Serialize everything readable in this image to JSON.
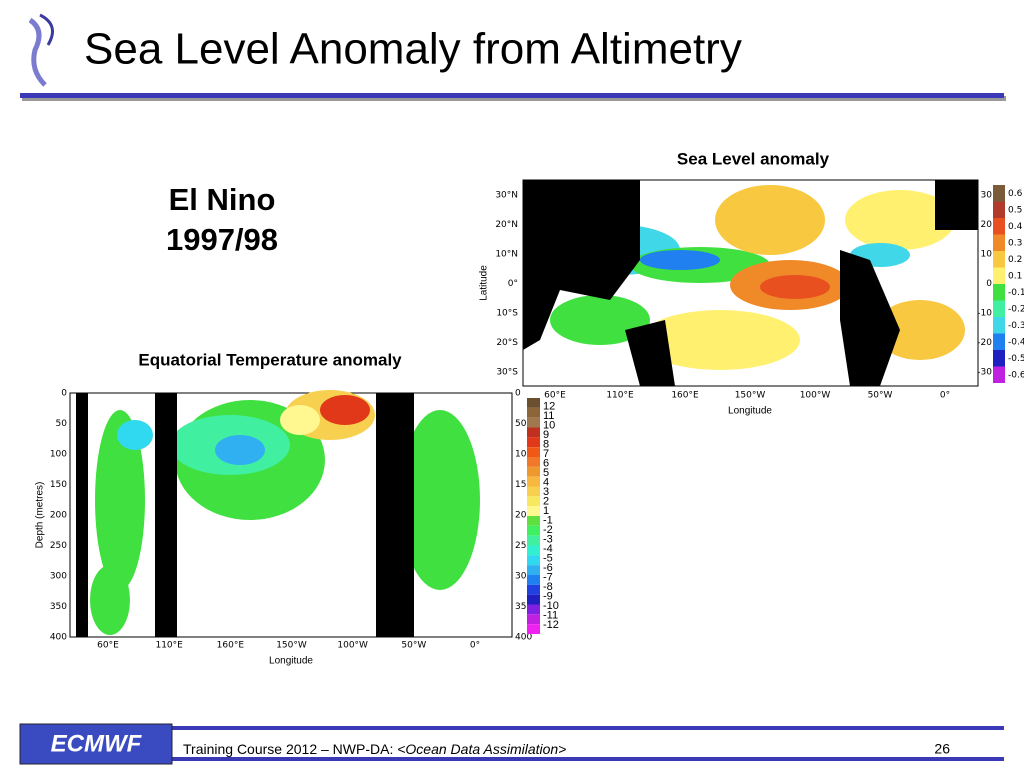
{
  "header": {
    "title": "Sea Level Anomaly from Altimetry"
  },
  "left_text": {
    "line1": "El Nino",
    "line2": "1997/98"
  },
  "sea_level": {
    "title": "Sea Level anomaly",
    "y_label": "Latitude",
    "x_label": "Longitude",
    "yticks": [
      "30°N",
      "20°N",
      "10°N",
      "0°",
      "10°S",
      "20°S",
      "30°S"
    ],
    "right_ticks": [
      "30",
      "20",
      "10",
      "0",
      "-10",
      "-20",
      "-30"
    ],
    "xticks": [
      "60°E",
      "110°E",
      "160°E",
      "150°W",
      "100°W",
      "50°W",
      "0°"
    ],
    "colorbar": {
      "labels": [
        "0.6",
        "0.5",
        "0.4",
        "0.3",
        "0.2",
        "0.1",
        "-0.1",
        "-0.2",
        "-0.3",
        "-0.4",
        "-0.5",
        "-0.6"
      ],
      "colors": [
        "#7a5c3a",
        "#b23a2a",
        "#e85020",
        "#f08a28",
        "#f8c840",
        "#fff070",
        "#40e040",
        "#40f0a0",
        "#40d8e8",
        "#2080f0",
        "#2020c0",
        "#c020e0"
      ]
    }
  },
  "temperature": {
    "title": "Equatorial Temperature anomaly",
    "y_label": "Depth (metres)",
    "x_label": "Longitude",
    "yticks": [
      "0",
      "50",
      "100",
      "150",
      "200",
      "250",
      "300",
      "350",
      "400"
    ],
    "xticks": [
      "60°E",
      "110°E",
      "160°E",
      "150°W",
      "100°W",
      "50°W",
      "0°"
    ],
    "colorbar": {
      "labels": [
        "12",
        "11",
        "10",
        "9",
        "8",
        "7",
        "6",
        "5",
        "4",
        "3",
        "2",
        "1",
        "-1",
        "-2",
        "-3",
        "-4",
        "-5",
        "-6",
        "-7",
        "-8",
        "-9",
        "-10",
        "-11",
        "-12"
      ],
      "colors": [
        "#6b5030",
        "#8c6638",
        "#a07850",
        "#c03020",
        "#e03818",
        "#f05818",
        "#f07828",
        "#f09830",
        "#f8b840",
        "#f8d050",
        "#f8e860",
        "#fff890",
        "#60e040",
        "#40f060",
        "#40f0a0",
        "#30f0d0",
        "#30d8f0",
        "#30b0f0",
        "#2080f0",
        "#2040e0",
        "#2020c0",
        "#8020e0",
        "#c020e0",
        "#f020f0"
      ]
    }
  },
  "footer": {
    "logo": "ECMWF",
    "course": "Training Course 2012 – NWP-DA: ",
    "topic": "<Ocean Data Assimilation>",
    "page": "26"
  }
}
